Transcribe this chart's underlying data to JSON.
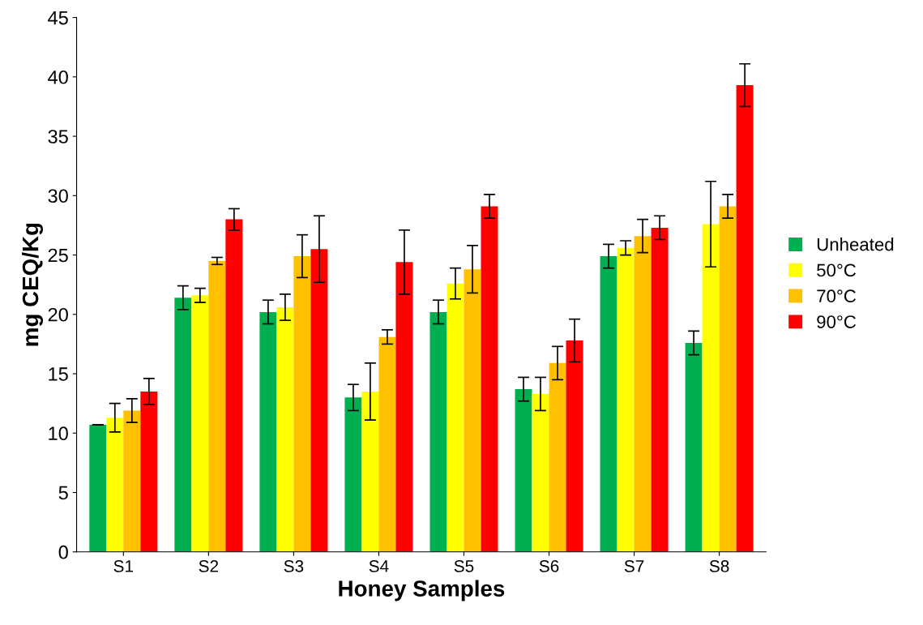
{
  "chart_data": {
    "type": "bar",
    "xlabel": "Honey Samples",
    "ylabel": "mg CEQ/Kg",
    "categories": [
      "S1",
      "S2",
      "S3",
      "S4",
      "S5",
      "S6",
      "S7",
      "S8"
    ],
    "series": [
      {
        "name": "Unheated",
        "color": "#00b050",
        "values": [
          10.7,
          21.4,
          20.2,
          13.0,
          20.2,
          13.7,
          24.9,
          17.6
        ],
        "errors": [
          0,
          1.0,
          1.0,
          1.1,
          1.0,
          1.0,
          1.0,
          1.0
        ]
      },
      {
        "name": "50°C",
        "color": "#ffff00",
        "values": [
          11.3,
          21.6,
          20.6,
          13.5,
          22.6,
          13.3,
          25.6,
          27.6
        ],
        "errors": [
          1.2,
          0.6,
          1.1,
          2.4,
          1.3,
          1.4,
          0.6,
          3.6
        ]
      },
      {
        "name": "70°C",
        "color": "#ffc000",
        "values": [
          11.9,
          24.5,
          24.9,
          18.1,
          23.8,
          15.9,
          26.6,
          29.1
        ],
        "errors": [
          1.0,
          0.3,
          1.8,
          0.6,
          2.0,
          1.4,
          1.4,
          1.0
        ]
      },
      {
        "name": "90°C",
        "color": "#ff0000",
        "values": [
          13.5,
          28.0,
          25.5,
          24.4,
          29.1,
          17.8,
          27.3,
          39.3
        ],
        "errors": [
          1.1,
          0.9,
          2.8,
          2.7,
          1.0,
          1.8,
          1.0,
          1.8
        ]
      }
    ],
    "ylim": [
      0,
      45
    ],
    "yticks": [
      0,
      5,
      10,
      15,
      20,
      25,
      30,
      35,
      40,
      45
    ],
    "grid": false,
    "legend": "right"
  }
}
